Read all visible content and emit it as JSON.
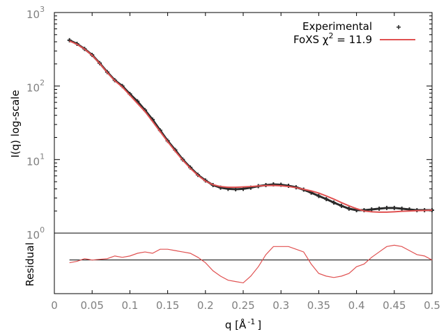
{
  "chart_data": {
    "type": "line",
    "xlabel": "q [Å",
    "xlabel_sup": "-1",
    "xlabel_end": "]",
    "xlim": [
      0,
      0.5
    ],
    "x_ticks": [
      "0",
      "0.05",
      "0.1",
      "0.15",
      "0.2",
      "0.25",
      "0.3",
      "0.35",
      "0.4",
      "0.45",
      "0.5"
    ],
    "top_panel": {
      "ylabel": "I(q) log-scale",
      "yscale": "log",
      "ylim": [
        1,
        1000
      ],
      "y_ticks": [
        {
          "base": "10",
          "exp": "0"
        },
        {
          "base": "10",
          "exp": "1"
        },
        {
          "base": "10",
          "exp": "2"
        },
        {
          "base": "10",
          "exp": "3"
        }
      ]
    },
    "bottom_panel": {
      "ylabel": "Residual",
      "baseline": 0
    },
    "legend": {
      "position": "top-right",
      "experimental_label": "Experimental",
      "fit_label_prefix": "FoXS χ",
      "fit_label_sup": "2",
      "fit_label_suffix": " = 11.9"
    },
    "colors": {
      "experimental": "#2a2a2a",
      "fit": "#e05050",
      "axis_text": "#808080"
    },
    "series": [
      {
        "name": "Experimental",
        "x": [
          0.02,
          0.03,
          0.04,
          0.05,
          0.06,
          0.07,
          0.08,
          0.09,
          0.1,
          0.11,
          0.12,
          0.13,
          0.14,
          0.15,
          0.16,
          0.17,
          0.18,
          0.19,
          0.2,
          0.21,
          0.22,
          0.23,
          0.24,
          0.25,
          0.26,
          0.27,
          0.28,
          0.29,
          0.3,
          0.31,
          0.32,
          0.33,
          0.34,
          0.35,
          0.36,
          0.37,
          0.38,
          0.39,
          0.4,
          0.41,
          0.42,
          0.43,
          0.44,
          0.45,
          0.46,
          0.47,
          0.48,
          0.49,
          0.5
        ],
        "y": [
          420,
          375,
          320,
          265,
          205,
          155,
          120,
          100,
          78,
          62,
          47,
          35,
          25,
          18,
          13.5,
          10,
          7.8,
          6.2,
          5.2,
          4.5,
          4.15,
          4.0,
          3.95,
          4.0,
          4.15,
          4.35,
          4.5,
          4.6,
          4.55,
          4.4,
          4.2,
          3.9,
          3.55,
          3.2,
          2.9,
          2.6,
          2.35,
          2.15,
          2.05,
          2.05,
          2.1,
          2.15,
          2.2,
          2.2,
          2.15,
          2.1,
          2.05,
          2.05,
          2.05
        ]
      },
      {
        "name": "FoXS χ2 = 11.9",
        "x": [
          0.02,
          0.03,
          0.04,
          0.05,
          0.06,
          0.07,
          0.08,
          0.09,
          0.1,
          0.11,
          0.12,
          0.13,
          0.14,
          0.15,
          0.16,
          0.17,
          0.18,
          0.19,
          0.2,
          0.21,
          0.22,
          0.23,
          0.24,
          0.25,
          0.26,
          0.27,
          0.28,
          0.29,
          0.3,
          0.31,
          0.32,
          0.33,
          0.34,
          0.35,
          0.36,
          0.37,
          0.38,
          0.39,
          0.4,
          0.41,
          0.42,
          0.43,
          0.44,
          0.45,
          0.46,
          0.47,
          0.48,
          0.49,
          0.5
        ],
        "y": [
          410,
          370,
          318,
          262,
          203,
          153,
          118,
          97,
          75,
          58,
          45,
          33,
          24,
          17.5,
          13,
          9.8,
          7.6,
          6.1,
          5.1,
          4.55,
          4.3,
          4.2,
          4.2,
          4.25,
          4.3,
          4.38,
          4.42,
          4.45,
          4.4,
          4.3,
          4.15,
          3.95,
          3.75,
          3.5,
          3.2,
          2.9,
          2.6,
          2.35,
          2.15,
          2.0,
          1.95,
          1.93,
          1.93,
          1.95,
          1.98,
          2.0,
          2.02,
          2.03,
          2.05
        ]
      }
    ],
    "residual": {
      "x": [
        0.02,
        0.03,
        0.04,
        0.05,
        0.06,
        0.07,
        0.08,
        0.09,
        0.1,
        0.11,
        0.12,
        0.13,
        0.14,
        0.15,
        0.16,
        0.17,
        0.18,
        0.19,
        0.2,
        0.21,
        0.22,
        0.23,
        0.24,
        0.25,
        0.26,
        0.27,
        0.28,
        0.29,
        0.3,
        0.31,
        0.32,
        0.33,
        0.34,
        0.35,
        0.36,
        0.37,
        0.38,
        0.39,
        0.4,
        0.41,
        0.42,
        0.43,
        0.44,
        0.45,
        0.46,
        0.47,
        0.48,
        0.49,
        0.5
      ],
      "y": [
        -0.2,
        -0.1,
        0.1,
        0.0,
        0.05,
        0.1,
        0.3,
        0.2,
        0.3,
        0.5,
        0.6,
        0.5,
        0.8,
        0.8,
        0.7,
        0.6,
        0.5,
        0.2,
        -0.2,
        -0.8,
        -1.2,
        -1.5,
        -1.6,
        -1.7,
        -1.2,
        -0.5,
        0.4,
        1.0,
        1.0,
        1.0,
        0.8,
        0.6,
        -0.3,
        -1.0,
        -1.2,
        -1.3,
        -1.2,
        -1.0,
        -0.5,
        -0.3,
        0.2,
        0.6,
        1.0,
        1.1,
        1.0,
        0.7,
        0.4,
        0.3,
        0.0
      ],
      "ylim": [
        -2.5,
        2.0
      ]
    }
  }
}
